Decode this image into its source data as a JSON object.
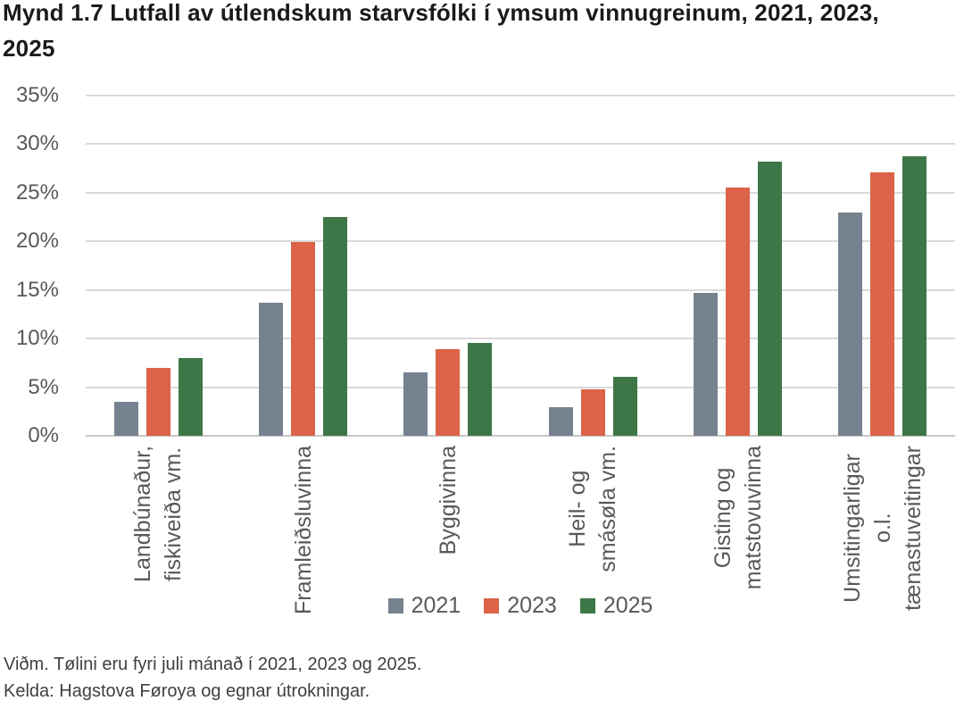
{
  "title": "Mynd 1.7 Lutfall av útlendskum starvsfólki í ymsum vinnugreinum, 2021, 2023,\n2025",
  "footnotes": {
    "note": "Viðm. Tølini eru fyri juli mánað í 2021, 2023 og 2025.",
    "source": "Kelda: Hagstova Føroya og egnar útrokningar."
  },
  "colors": {
    "series_2021": "#76828F",
    "series_2023": "#DC6347",
    "series_2025": "#3E7747",
    "gridline": "#DADADA",
    "axis_line": "#C6C6C6",
    "tick_text": "#595959",
    "title_text": "#1A1A1A",
    "footnote_text": "#3F3F3F"
  },
  "chart_data": {
    "type": "bar",
    "title": "Mynd 1.7 Lutfall av útlendskum starvsfólki í ymsum vinnugreinum, 2021, 2023, 2025",
    "categories": [
      "Landbúnaður,\nfiskiveiða vm.",
      "Framleiðsluvinna",
      "Byggivinna",
      "Heil- og\nsmásøla vm.",
      "Gisting og\nmatstovuvinna",
      "Umsitingarligar\no.l.\ntænastuveitingar"
    ],
    "series": [
      {
        "name": "2021",
        "color": "#76828F",
        "values": [
          3.5,
          13.7,
          6.5,
          2.9,
          14.7,
          23.0
        ]
      },
      {
        "name": "2023",
        "color": "#DC6347",
        "values": [
          7.0,
          19.9,
          8.9,
          4.8,
          25.5,
          27.1
        ]
      },
      {
        "name": "2025",
        "color": "#3E7747",
        "values": [
          8.0,
          22.5,
          9.6,
          6.1,
          28.2,
          28.8
        ]
      }
    ],
    "xlabel": "",
    "ylabel": "",
    "ylim": [
      0,
      35
    ],
    "ytick_step": 5,
    "ytick_format": "percent",
    "grid": true,
    "legend_position": "bottom-center"
  }
}
